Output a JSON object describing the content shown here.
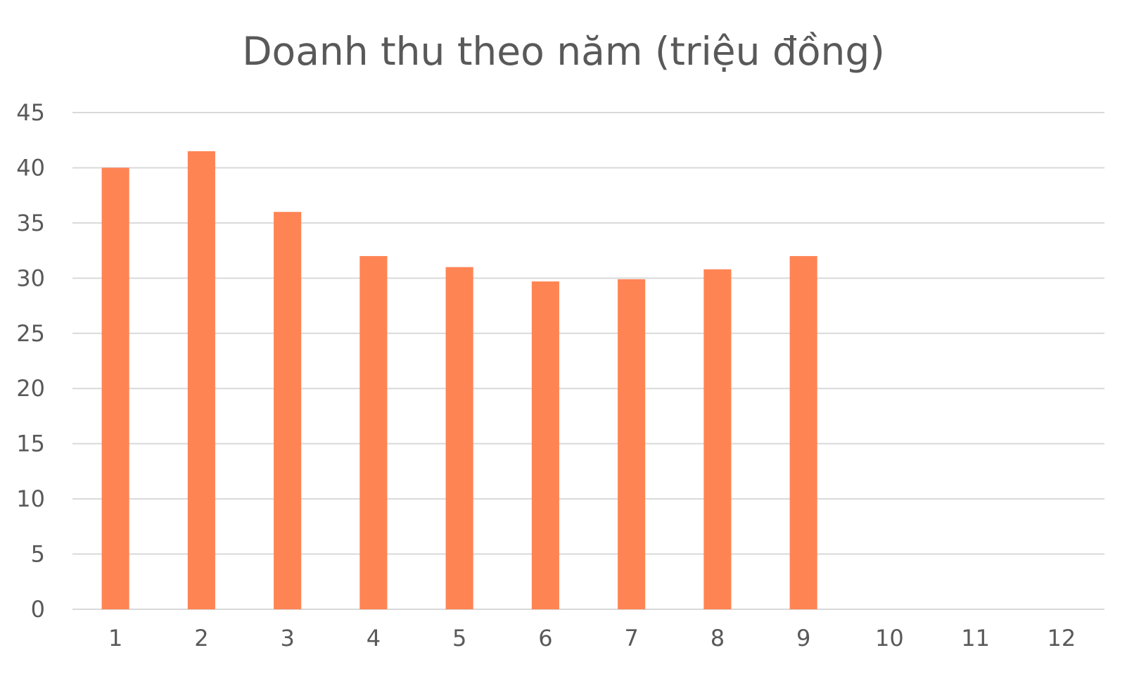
{
  "chart_data": {
    "type": "bar",
    "title": "Doanh thu theo năm (triệu đồng)",
    "xlabel": "",
    "ylabel": "",
    "categories": [
      "1",
      "2",
      "3",
      "4",
      "5",
      "6",
      "7",
      "8",
      "9",
      "10",
      "11",
      "12"
    ],
    "values": [
      40,
      41.5,
      36,
      32,
      31,
      29.7,
      29.9,
      30.8,
      32,
      null,
      null,
      null
    ],
    "ylim": [
      0,
      45
    ],
    "yticks": [
      0,
      5,
      10,
      15,
      20,
      25,
      30,
      35,
      40,
      45
    ],
    "grid": true,
    "legend": "none",
    "bar_color": "#ff8454",
    "grid_color": "#d9d9d9",
    "text_color": "#595959"
  }
}
